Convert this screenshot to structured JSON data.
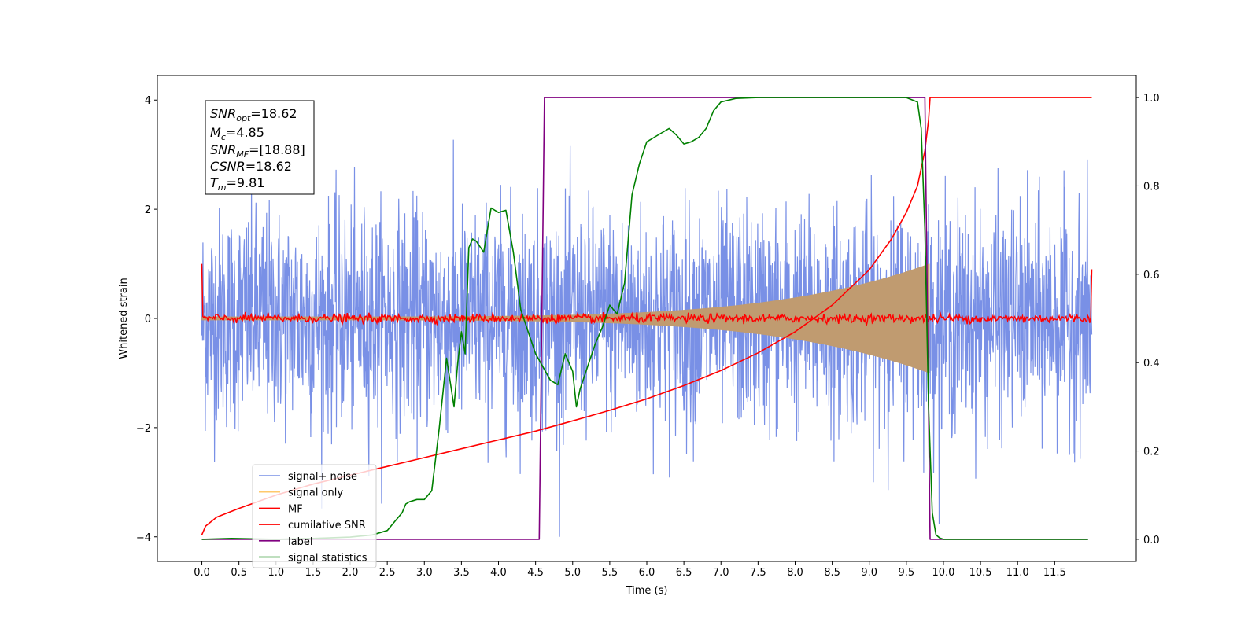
{
  "chart_data": {
    "type": "line",
    "xlabel": "Time (s)",
    "ylabel": "Whitened strain",
    "xlim": [
      -0.6,
      12.6
    ],
    "ylim": [
      -4.45,
      4.45
    ],
    "ylim_right": [
      -0.05,
      1.05
    ],
    "grid": false,
    "legend_position": "lower-left",
    "x_ticks": [
      "0.0",
      "0.5",
      "1.0",
      "1.5",
      "2.0",
      "2.5",
      "3.0",
      "3.5",
      "4.0",
      "4.5",
      "5.0",
      "5.5",
      "6.0",
      "6.5",
      "7.0",
      "7.5",
      "8.0",
      "8.5",
      "9.0",
      "9.5",
      "10.0",
      "10.5",
      "11.0",
      "11.5"
    ],
    "y_ticks_left": [
      "4",
      "2",
      "0",
      "−2",
      "−4"
    ],
    "y_ticks_right": [
      "1.0",
      "0.8",
      "0.6",
      "0.4",
      "0.2",
      "0.0"
    ],
    "annotation": {
      "snr_opt_sym": "SNR",
      "snr_opt_sub": "opt",
      "snr_opt_val": "=18.62",
      "mc_sym": "M",
      "mc_sub": "c",
      "mc_val": "=4.85",
      "snr_mf_sym": "SNR",
      "snr_mf_sub": "MF",
      "snr_mf_val": "=[18.88]",
      "csnr_sym": "CSNR",
      "csnr_val": "=18.62",
      "tm_sym": "T",
      "tm_sub": "m",
      "tm_val": "=9.81"
    },
    "legend": [
      "signal+ noise",
      "signal only",
      "MF",
      "cumilative SNR",
      "label",
      "signal statistics"
    ],
    "series": [
      {
        "name": "signal+ noise",
        "axis": "left",
        "color": "#7990e6",
        "x_range": [
          0.0,
          12.0
        ],
        "amplitude_typical": 1.0,
        "peak": 4.0
      },
      {
        "name": "signal only",
        "axis": "left",
        "color": "#c09b70",
        "chirp_start": 0.0,
        "chirp_end": 9.81,
        "amplitude_start": 0.03,
        "amplitude_end": 1.0
      },
      {
        "name": "MF",
        "axis": "left",
        "color": "#ff0000",
        "x_range": [
          0.0,
          12.0
        ],
        "level": 0.0,
        "edge_value": 1.0
      },
      {
        "name": "cumilative SNR",
        "axis": "right",
        "color": "#ff0000",
        "x": [
          0.0,
          0.05,
          0.2,
          0.5,
          1.0,
          1.5,
          2.0,
          2.5,
          3.0,
          3.5,
          4.0,
          4.5,
          5.0,
          5.5,
          6.0,
          6.5,
          7.0,
          7.5,
          8.0,
          8.5,
          9.0,
          9.3,
          9.5,
          9.65,
          9.75,
          9.8,
          9.82,
          12.0
        ],
        "y": [
          0.01,
          0.03,
          0.05,
          0.07,
          0.1,
          0.125,
          0.145,
          0.165,
          0.185,
          0.205,
          0.225,
          0.245,
          0.268,
          0.292,
          0.318,
          0.348,
          0.382,
          0.422,
          0.47,
          0.53,
          0.61,
          0.68,
          0.74,
          0.8,
          0.88,
          0.95,
          1.0,
          1.0
        ]
      },
      {
        "name": "label",
        "axis": "right",
        "color": "#800080",
        "x": [
          0.0,
          4.55,
          4.62,
          9.75,
          9.82,
          11.95
        ],
        "y": [
          0.0,
          0.0,
          1.0,
          1.0,
          0.0,
          0.0
        ]
      },
      {
        "name": "signal statistics",
        "axis": "right",
        "color": "#008000",
        "x": [
          0.0,
          0.4,
          1.0,
          1.5,
          2.0,
          2.3,
          2.5,
          2.6,
          2.7,
          2.75,
          2.8,
          2.9,
          3.0,
          3.1,
          3.2,
          3.3,
          3.4,
          3.45,
          3.5,
          3.55,
          3.6,
          3.65,
          3.7,
          3.8,
          3.9,
          4.0,
          4.1,
          4.2,
          4.3,
          4.4,
          4.5,
          4.6,
          4.7,
          4.8,
          4.9,
          5.0,
          5.05,
          5.1,
          5.2,
          5.3,
          5.4,
          5.5,
          5.6,
          5.7,
          5.8,
          5.9,
          6.0,
          6.2,
          6.3,
          6.4,
          6.5,
          6.6,
          6.7,
          6.8,
          6.9,
          7.0,
          7.2,
          7.5,
          8.0,
          8.5,
          9.0,
          9.5,
          9.65,
          9.7,
          9.75,
          9.8,
          9.85,
          9.9,
          9.95,
          10.0,
          10.5,
          11.0,
          11.5,
          11.95
        ],
        "y": [
          0.0,
          0.002,
          0.0,
          0.002,
          0.005,
          0.01,
          0.02,
          0.04,
          0.06,
          0.08,
          0.085,
          0.09,
          0.09,
          0.11,
          0.25,
          0.41,
          0.3,
          0.4,
          0.47,
          0.42,
          0.66,
          0.68,
          0.675,
          0.65,
          0.75,
          0.74,
          0.745,
          0.65,
          0.52,
          0.47,
          0.42,
          0.39,
          0.36,
          0.35,
          0.42,
          0.38,
          0.3,
          0.34,
          0.39,
          0.44,
          0.48,
          0.53,
          0.51,
          0.58,
          0.78,
          0.85,
          0.9,
          0.92,
          0.93,
          0.915,
          0.895,
          0.9,
          0.91,
          0.93,
          0.97,
          0.99,
          0.998,
          1.0,
          1.0,
          1.0,
          1.0,
          1.0,
          0.99,
          0.93,
          0.7,
          0.3,
          0.06,
          0.01,
          0.003,
          0.0,
          0.0,
          0.0,
          0.0,
          0.0
        ]
      }
    ]
  }
}
